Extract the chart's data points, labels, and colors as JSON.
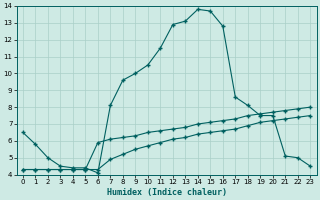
{
  "xlabel": "Humidex (Indice chaleur)",
  "bg_color": "#ceeae4",
  "grid_color": "#aacfc8",
  "line_color": "#006060",
  "xlim": [
    -0.5,
    23.5
  ],
  "ylim": [
    4,
    14
  ],
  "xticks": [
    0,
    1,
    2,
    3,
    4,
    5,
    6,
    7,
    8,
    9,
    10,
    11,
    12,
    13,
    14,
    15,
    16,
    17,
    18,
    19,
    20,
    21,
    22,
    23
  ],
  "yticks": [
    4,
    5,
    6,
    7,
    8,
    9,
    10,
    11,
    12,
    13,
    14
  ],
  "line1_x": [
    0,
    1,
    2,
    3,
    4,
    5,
    6,
    7,
    8,
    9,
    10,
    11,
    12,
    13,
    14,
    15,
    16,
    17,
    18,
    19,
    20,
    21,
    22,
    23
  ],
  "line1_y": [
    6.5,
    5.8,
    5.0,
    4.5,
    4.4,
    4.4,
    4.1,
    8.1,
    9.6,
    10.0,
    10.5,
    11.5,
    12.9,
    13.1,
    13.8,
    13.7,
    12.8,
    8.6,
    8.1,
    7.5,
    7.5,
    5.1,
    5.0,
    4.5
  ],
  "line2_x": [
    0,
    1,
    2,
    3,
    4,
    5,
    6,
    7,
    8,
    9,
    10,
    11,
    12,
    13,
    14,
    15,
    16,
    17,
    18,
    19,
    20,
    21,
    22,
    23
  ],
  "line2_y": [
    4.3,
    4.3,
    4.3,
    4.3,
    4.3,
    4.3,
    4.3,
    4.9,
    5.2,
    5.5,
    5.7,
    5.9,
    6.1,
    6.2,
    6.4,
    6.5,
    6.6,
    6.7,
    6.9,
    7.1,
    7.2,
    7.3,
    7.4,
    7.5
  ],
  "line3_x": [
    0,
    1,
    2,
    3,
    4,
    5,
    6,
    7,
    8,
    9,
    10,
    11,
    12,
    13,
    14,
    15,
    16,
    17,
    18,
    19,
    20,
    21,
    22,
    23
  ],
  "line3_y": [
    4.3,
    4.3,
    4.3,
    4.3,
    4.3,
    4.3,
    5.9,
    6.1,
    6.2,
    6.3,
    6.5,
    6.6,
    6.7,
    6.8,
    7.0,
    7.1,
    7.2,
    7.3,
    7.5,
    7.6,
    7.7,
    7.8,
    7.9,
    8.0
  ]
}
